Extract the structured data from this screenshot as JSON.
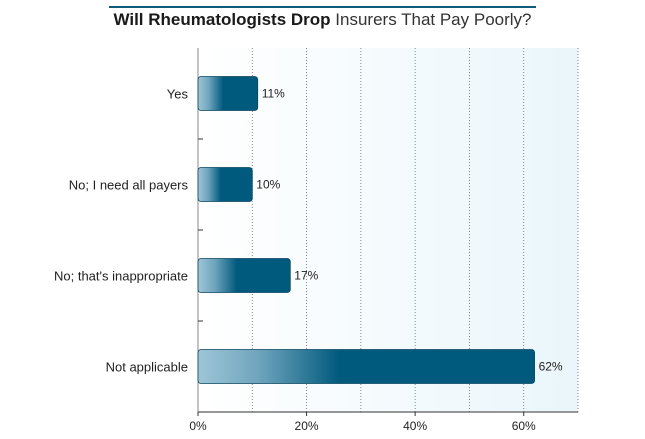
{
  "title": {
    "bold": "Will Rheumatologists Drop",
    "light": "Insurers That Pay Poorly?"
  },
  "colors": {
    "bar": "#005a7d",
    "bar_light": "#9ec6d8",
    "plot_bg": "#eaf6fb",
    "grid": "#6a6a6a",
    "title_rule": "#0e5a7a"
  },
  "chart_data": {
    "type": "bar",
    "orientation": "horizontal",
    "title": "Will Rheumatologists Drop Insurers That Pay Poorly?",
    "categories": [
      "Yes",
      "No; I need all payers",
      "No; that's inappropriate",
      "Not applicable"
    ],
    "values": [
      11,
      10,
      17,
      62
    ],
    "value_labels": [
      "11%",
      "10%",
      "17%",
      "62%"
    ],
    "xlim": [
      0,
      70
    ],
    "xticks": [
      0,
      20,
      40,
      60
    ],
    "xtick_labels": [
      "0%",
      "20%",
      "40%",
      "60%"
    ],
    "grid": true,
    "legend": "none",
    "xlabel": "",
    "ylabel": ""
  }
}
